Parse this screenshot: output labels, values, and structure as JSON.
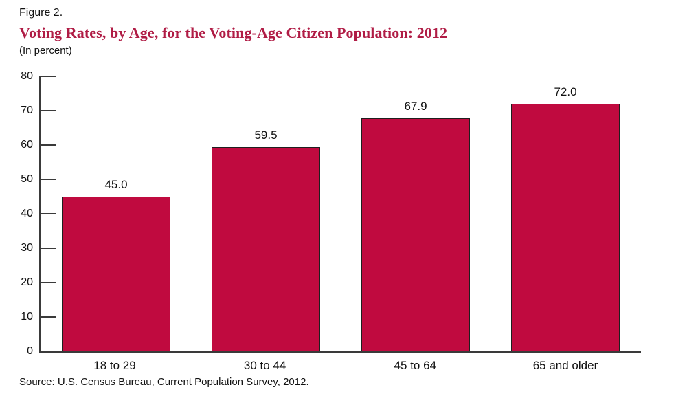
{
  "figure": {
    "label": "Figure 2.",
    "title": "Voting Rates, by Age, for the Voting-Age Citizen Population: 2012",
    "unit_note": "(In percent)",
    "source": "Source: U.S. Census Bureau, Current Population Survey, 2012."
  },
  "colors": {
    "bar_fill": "#c00a3f",
    "bar_border": "#1f1f1f",
    "title_color": "#b01c45",
    "axis_color": "#3a3a3a",
    "text_color": "#111111"
  },
  "chart_data": {
    "type": "bar",
    "categories": [
      "18 to 29",
      "30 to 44",
      "45 to 64",
      "65 and older"
    ],
    "values": [
      45.0,
      59.5,
      67.9,
      72.0
    ],
    "value_labels": [
      "45.0",
      "59.5",
      "67.9",
      "72.0"
    ],
    "title": "Voting Rates, by Age, for the Voting-Age Citizen Population: 2012",
    "xlabel": "",
    "ylabel": "In percent",
    "ylim": [
      0,
      80
    ],
    "ytick_step": 10,
    "ytick_labels": [
      "0",
      "10",
      "20",
      "30",
      "40",
      "50",
      "60",
      "70",
      "80"
    ],
    "grid": false,
    "legend": false,
    "bar_color": "#c00a3f"
  }
}
